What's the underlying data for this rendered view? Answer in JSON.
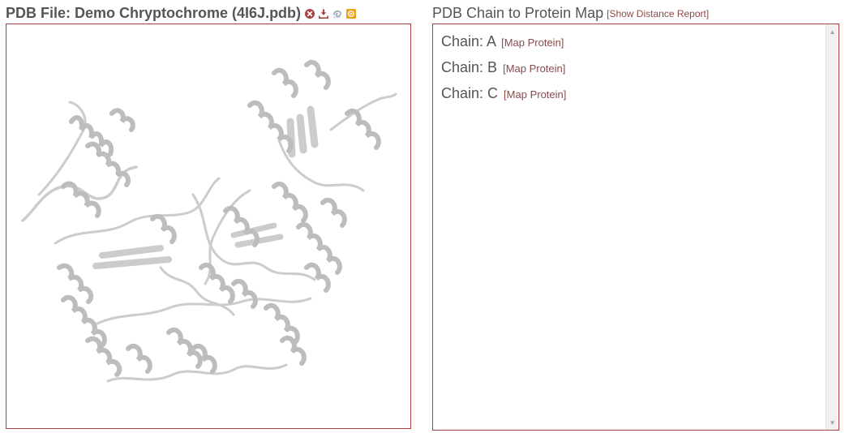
{
  "pdb_panel": {
    "title": "PDB File: Demo Chryptochrome (4I6J.pdb)",
    "icons": [
      "close-circle-icon",
      "download-icon",
      "swirl-icon",
      "target-square-icon"
    ],
    "colors": {
      "border": "#a94442",
      "close_icon": "#a94442",
      "download_icon": "#a94442",
      "target_icon": "#e8a317",
      "structure": "#cccccc"
    }
  },
  "map_panel": {
    "title": "PDB Chain to Protein Map",
    "report_link": {
      "open_bracket": "[",
      "label": "Show Distance Report",
      "close_bracket": "]"
    },
    "chains": [
      {
        "label": "Chain: A",
        "link_label": "Map Protein"
      },
      {
        "label": "Chain: B",
        "link_label": "Map Protein"
      },
      {
        "label": "Chain: C",
        "link_label": "Map Protein"
      }
    ]
  }
}
